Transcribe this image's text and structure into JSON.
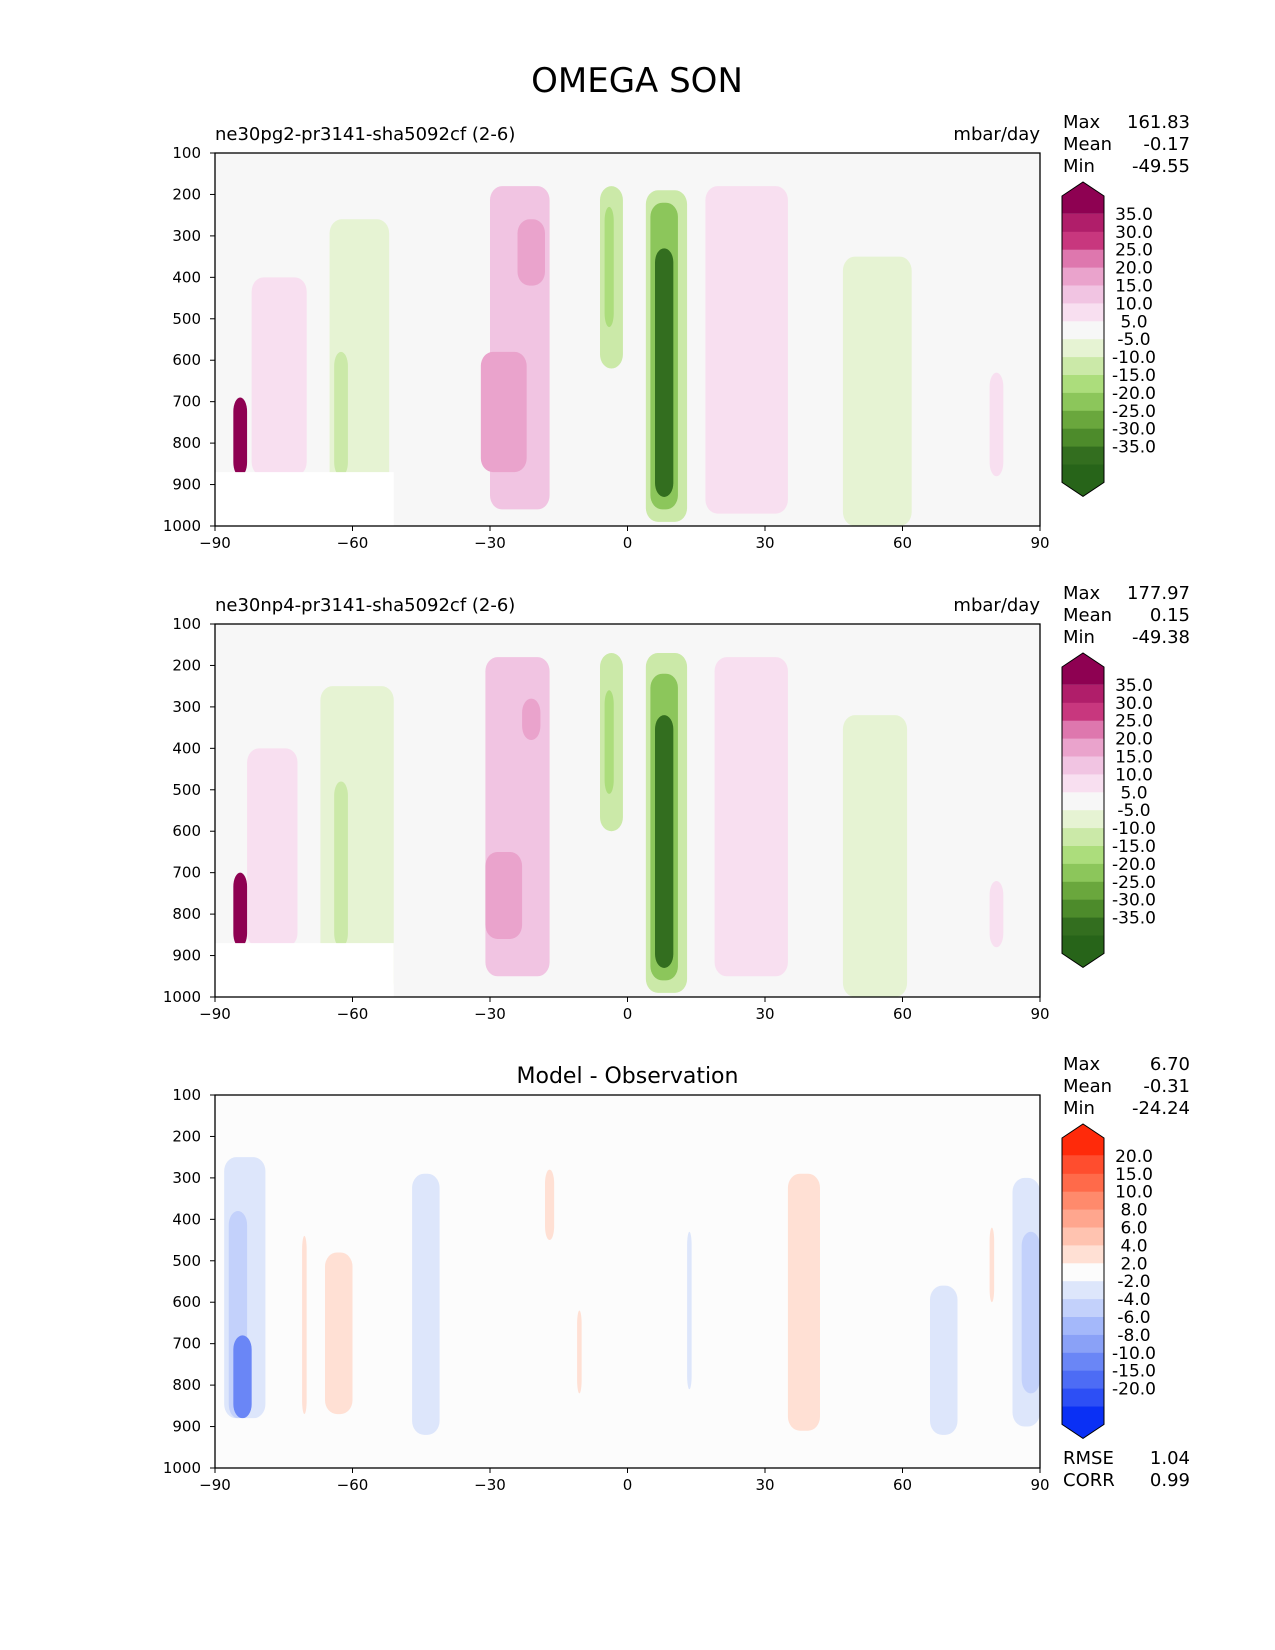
{
  "title": "OMEGA SON",
  "chart_data": [
    {
      "type": "contour",
      "title": "ne30pg2-pr3141-sha5092cf (2-6)",
      "units": "mbar/day",
      "x_ticks": [
        -90,
        -60,
        -30,
        0,
        30,
        60,
        90
      ],
      "y_ticks": [
        100,
        200,
        300,
        400,
        500,
        600,
        700,
        800,
        900,
        1000
      ],
      "xlim": [
        -90,
        90
      ],
      "ylim": [
        1000,
        100
      ],
      "stats": [
        {
          "label": "Max",
          "value": "161.83"
        },
        {
          "label": "Mean",
          "value": "-0.17"
        },
        {
          "label": "Min",
          "value": "-49.55"
        }
      ],
      "colorbar": {
        "labels": [
          "35.0",
          "30.0",
          "25.0",
          "20.0",
          "15.0",
          "10.0",
          "5.0",
          "-5.0",
          "-10.0",
          "-15.0",
          "-20.0",
          "-25.0",
          "-30.0",
          "-35.0"
        ],
        "colors": [
          "#8e0152",
          "#b01e6a",
          "#c8377e",
          "#de77ae",
          "#eaa3cc",
          "#f1c4e2",
          "#f8dff0",
          "#f7f7f7",
          "#e6f3d3",
          "#cbe9a8",
          "#acdd7c",
          "#8cc65b",
          "#6aa73d",
          "#4d8b2b",
          "#336e1f",
          "#276419"
        ]
      },
      "regions": [
        {
          "v": 10,
          "lon": [
            -30,
            -17
          ],
          "p": [
            180,
            960
          ]
        },
        {
          "v": 18,
          "lon": [
            -24,
            -18
          ],
          "p": [
            260,
            420
          ]
        },
        {
          "v": 18,
          "lon": [
            -32,
            -22
          ],
          "p": [
            580,
            870
          ]
        },
        {
          "v": 8,
          "lon": [
            17,
            35
          ],
          "p": [
            180,
            970
          ]
        },
        {
          "v": 8,
          "lon": [
            -82,
            -70
          ],
          "p": [
            400,
            880
          ]
        },
        {
          "v": 40,
          "lon": [
            -86,
            -83
          ],
          "p": [
            690,
            880
          ]
        },
        {
          "v": -8,
          "lon": [
            -65,
            -52
          ],
          "p": [
            260,
            1000
          ]
        },
        {
          "v": -13,
          "lon": [
            -64,
            -61
          ],
          "p": [
            580,
            880
          ]
        },
        {
          "v": -12,
          "lon": [
            -6,
            -1
          ],
          "p": [
            180,
            620
          ]
        },
        {
          "v": -18,
          "lon": [
            -5,
            -3
          ],
          "p": [
            230,
            520
          ]
        },
        {
          "v": -12,
          "lon": [
            4,
            13
          ],
          "p": [
            190,
            990
          ]
        },
        {
          "v": -22,
          "lon": [
            5,
            11
          ],
          "p": [
            220,
            960
          ]
        },
        {
          "v": -38,
          "lon": [
            6,
            10
          ],
          "p": [
            330,
            930
          ]
        },
        {
          "v": -8,
          "lon": [
            47,
            62
          ],
          "p": [
            350,
            1000
          ]
        },
        {
          "v": 8,
          "lon": [
            79,
            82
          ],
          "p": [
            630,
            880
          ]
        }
      ]
    },
    {
      "type": "contour",
      "title": "ne30np4-pr3141-sha5092cf (2-6)",
      "units": "mbar/day",
      "x_ticks": [
        -90,
        -60,
        -30,
        0,
        30,
        60,
        90
      ],
      "y_ticks": [
        100,
        200,
        300,
        400,
        500,
        600,
        700,
        800,
        900,
        1000
      ],
      "xlim": [
        -90,
        90
      ],
      "ylim": [
        1000,
        100
      ],
      "stats": [
        {
          "label": "Max",
          "value": "177.97"
        },
        {
          "label": "Mean",
          "value": "0.15"
        },
        {
          "label": "Min",
          "value": "-49.38"
        }
      ],
      "colorbar": {
        "labels": [
          "35.0",
          "30.0",
          "25.0",
          "20.0",
          "15.0",
          "10.0",
          "5.0",
          "-5.0",
          "-10.0",
          "-15.0",
          "-20.0",
          "-25.0",
          "-30.0",
          "-35.0"
        ],
        "colors": [
          "#8e0152",
          "#b01e6a",
          "#c8377e",
          "#de77ae",
          "#eaa3cc",
          "#f1c4e2",
          "#f8dff0",
          "#f7f7f7",
          "#e6f3d3",
          "#cbe9a8",
          "#acdd7c",
          "#8cc65b",
          "#6aa73d",
          "#4d8b2b",
          "#336e1f",
          "#276419"
        ]
      },
      "regions": [
        {
          "v": 10,
          "lon": [
            -31,
            -17
          ],
          "p": [
            180,
            950
          ]
        },
        {
          "v": 18,
          "lon": [
            -23,
            -19
          ],
          "p": [
            280,
            380
          ]
        },
        {
          "v": 18,
          "lon": [
            -31,
            -23
          ],
          "p": [
            650,
            860
          ]
        },
        {
          "v": 8,
          "lon": [
            19,
            35
          ],
          "p": [
            180,
            950
          ]
        },
        {
          "v": 8,
          "lon": [
            -83,
            -72
          ],
          "p": [
            400,
            880
          ]
        },
        {
          "v": 40,
          "lon": [
            -86,
            -83
          ],
          "p": [
            700,
            880
          ]
        },
        {
          "v": -8,
          "lon": [
            -67,
            -51
          ],
          "p": [
            250,
            1000
          ]
        },
        {
          "v": -13,
          "lon": [
            -64,
            -61
          ],
          "p": [
            480,
            880
          ]
        },
        {
          "v": -12,
          "lon": [
            -6,
            -1
          ],
          "p": [
            170,
            600
          ]
        },
        {
          "v": -18,
          "lon": [
            -5,
            -3
          ],
          "p": [
            260,
            510
          ]
        },
        {
          "v": -12,
          "lon": [
            4,
            13
          ],
          "p": [
            170,
            990
          ]
        },
        {
          "v": -22,
          "lon": [
            5,
            11
          ],
          "p": [
            220,
            960
          ]
        },
        {
          "v": -38,
          "lon": [
            6,
            10
          ],
          "p": [
            320,
            930
          ]
        },
        {
          "v": -8,
          "lon": [
            47,
            61
          ],
          "p": [
            320,
            1000
          ]
        },
        {
          "v": 8,
          "lon": [
            79,
            82
          ],
          "p": [
            720,
            880
          ]
        }
      ]
    },
    {
      "type": "contour",
      "title": "Model - Observation",
      "units": "",
      "x_ticks": [
        -90,
        -60,
        -30,
        0,
        30,
        60,
        90
      ],
      "y_ticks": [
        100,
        200,
        300,
        400,
        500,
        600,
        700,
        800,
        900,
        1000
      ],
      "xlim": [
        -90,
        90
      ],
      "ylim": [
        1000,
        100
      ],
      "stats": [
        {
          "label": "Max",
          "value": "6.70"
        },
        {
          "label": "Mean",
          "value": "-0.31"
        },
        {
          "label": "Min",
          "value": "-24.24"
        }
      ],
      "extra_stats": [
        {
          "label": "RMSE",
          "value": "1.04"
        },
        {
          "label": "CORR",
          "value": "0.99"
        }
      ],
      "colorbar": {
        "labels": [
          "20.0",
          "15.0",
          "10.0",
          "8.0",
          "6.0",
          "4.0",
          "2.0",
          "-2.0",
          "-4.0",
          "-6.0",
          "-8.0",
          "-10.0",
          "-15.0",
          "-20.0"
        ],
        "colors": [
          "#ff2a0a",
          "#ff4d2e",
          "#ff6a4a",
          "#ff8a6c",
          "#ffa68e",
          "#ffc3b0",
          "#ffe0d4",
          "#fcfcfc",
          "#dde6fb",
          "#c3d1fb",
          "#a4b8fa",
          "#8aa1f7",
          "#6a86f6",
          "#4d6cf5",
          "#2d4ff5",
          "#0a30f5"
        ]
      },
      "regions": [
        {
          "v": -3,
          "lon": [
            -88,
            -79
          ],
          "p": [
            250,
            880
          ]
        },
        {
          "v": -5,
          "lon": [
            -87,
            -83
          ],
          "p": [
            380,
            880
          ]
        },
        {
          "v": -12,
          "lon": [
            -86,
            -82
          ],
          "p": [
            680,
            880
          ]
        },
        {
          "v": 3,
          "lon": [
            -71,
            -70
          ],
          "p": [
            440,
            870
          ]
        },
        {
          "v": 3,
          "lon": [
            -66,
            -60
          ],
          "p": [
            480,
            870
          ]
        },
        {
          "v": -3,
          "lon": [
            -47,
            -41
          ],
          "p": [
            290,
            920
          ]
        },
        {
          "v": 3,
          "lon": [
            -18,
            -16
          ],
          "p": [
            280,
            450
          ]
        },
        {
          "v": 3,
          "lon": [
            -11,
            -10
          ],
          "p": [
            620,
            820
          ]
        },
        {
          "v": -3,
          "lon": [
            13,
            14
          ],
          "p": [
            430,
            810
          ]
        },
        {
          "v": 3,
          "lon": [
            35,
            42
          ],
          "p": [
            290,
            910
          ]
        },
        {
          "v": -3,
          "lon": [
            66,
            72
          ],
          "p": [
            560,
            920
          ]
        },
        {
          "v": 3,
          "lon": [
            79,
            80
          ],
          "p": [
            420,
            600
          ]
        },
        {
          "v": -3,
          "lon": [
            84,
            90
          ],
          "p": [
            300,
            900
          ]
        },
        {
          "v": -6,
          "lon": [
            86,
            90
          ],
          "p": [
            430,
            820
          ]
        }
      ]
    }
  ]
}
